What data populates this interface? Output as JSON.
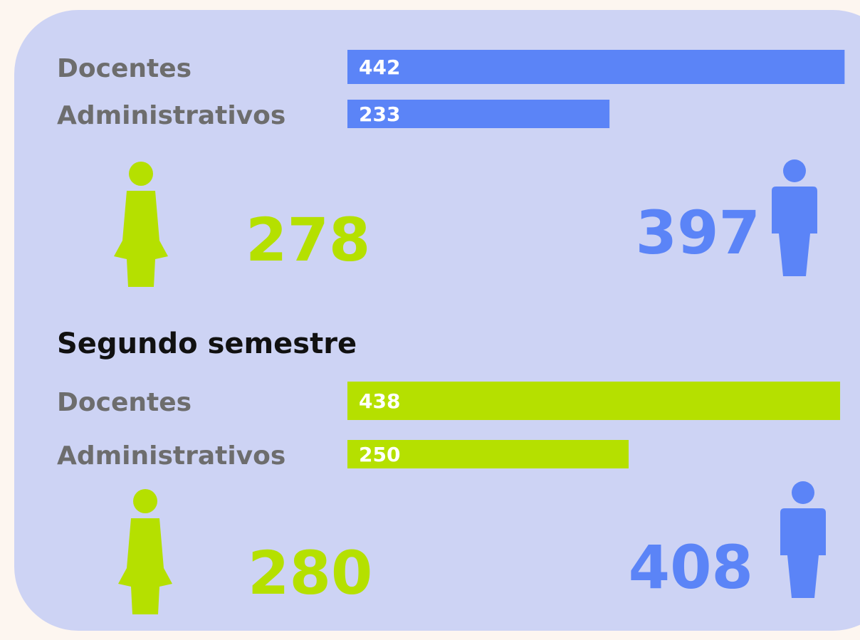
{
  "panels": [
    {
      "bars": [
        {
          "label": "Docentes",
          "value": 442
        },
        {
          "label": "Administrativos",
          "value": 233
        }
      ],
      "women": 278,
      "men": 397
    },
    {
      "title": "Segundo semestre",
      "bars": [
        {
          "label": "Docentes",
          "value": 438
        },
        {
          "label": "Administrativos",
          "value": 250
        }
      ],
      "women": 280,
      "men": 408
    }
  ],
  "colors": [
    "#5b84f7",
    "#b5e000"
  ]
}
